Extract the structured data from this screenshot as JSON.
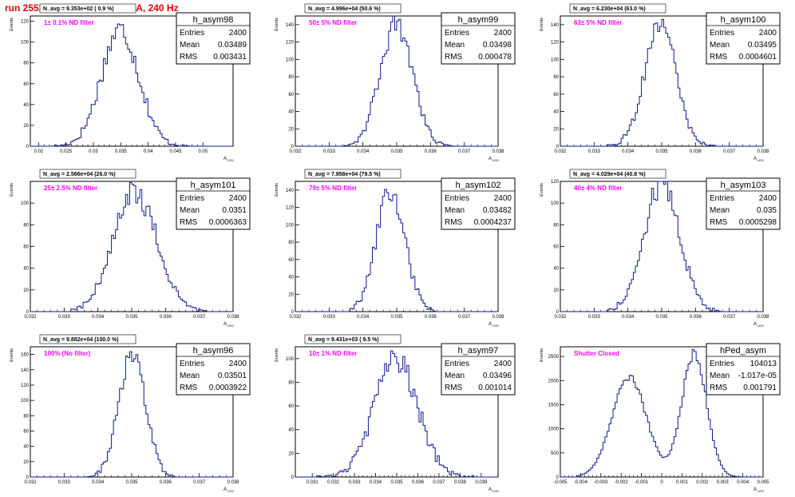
{
  "page_title": "run 2552,   550 V, I_pe ≈ 0.5 nA, 240 Hz",
  "stats_labels": {
    "entries": "Entries",
    "mean": "Mean",
    "rms": "RMS"
  },
  "axis_labels": {
    "y": "Events",
    "x": "A",
    "x_sub": "LED"
  },
  "chart_data": [
    {
      "type": "histogram",
      "hist_name": "h_asym98",
      "navg_label": "N_avg = 9.353e+02 ( 0.9 %)",
      "filter_label": "1± 0.1% ND filter",
      "stats": {
        "entries": "2400",
        "mean": "0.03489",
        "rms": "0.003431"
      },
      "xlim": [
        0.0185,
        0.0555
      ],
      "ylim": [
        0,
        125
      ],
      "x_ticks": [
        "0.02",
        "0.025",
        "0.03",
        "0.035",
        "0.04",
        "0.045",
        "0.05"
      ],
      "x_tick_values": [
        0.02,
        0.025,
        0.03,
        0.035,
        0.04,
        0.045,
        0.05
      ],
      "y_ticks": [
        0,
        20,
        40,
        60,
        80,
        100,
        120
      ],
      "mean": 0.03489,
      "sigma": 0.003431,
      "peak": 112,
      "xmin": 0.0225,
      "xmax": 0.0475
    },
    {
      "type": "histogram",
      "hist_name": "h_asym99",
      "navg_label": "N_avg = 4.996e+04 (50.6 %)",
      "filter_label": "50± 5% ND filter",
      "stats": {
        "entries": "2400",
        "mean": "0.03498",
        "rms": "0.000478"
      },
      "xlim": [
        0.032,
        0.038
      ],
      "ylim": [
        0,
        150
      ],
      "x_ticks": [
        "0.032",
        "0.033",
        "0.034",
        "0.035",
        "0.036",
        "0.037",
        "0.038"
      ],
      "x_tick_values": [
        0.032,
        0.033,
        0.034,
        0.035,
        0.036,
        0.037,
        0.038
      ],
      "y_ticks": [
        0,
        20,
        40,
        60,
        80,
        100,
        120,
        140
      ],
      "mean": 0.03498,
      "sigma": 0.000478,
      "peak": 140,
      "xmin": 0.0334,
      "xmax": 0.0367
    },
    {
      "type": "histogram",
      "hist_name": "h_asym100",
      "navg_label": "N_avg = 6.230e+04 (63.0 %)",
      "filter_label": "63± 5% ND filter",
      "stats": {
        "entries": "2400",
        "mean": "0.03495",
        "rms": "0.0004601"
      },
      "xlim": [
        0.032,
        0.038
      ],
      "ylim": [
        0,
        150
      ],
      "x_ticks": [
        "0.032",
        "0.033",
        "0.034",
        "0.035",
        "0.036",
        "0.037",
        "0.038"
      ],
      "x_tick_values": [
        0.032,
        0.033,
        0.034,
        0.035,
        0.036,
        0.037,
        0.038
      ],
      "y_ticks": [
        0,
        20,
        40,
        60,
        80,
        100,
        120,
        140
      ],
      "mean": 0.03495,
      "sigma": 0.0004601,
      "peak": 142,
      "xmin": 0.0334,
      "xmax": 0.0366
    },
    {
      "type": "histogram",
      "hist_name": "h_asym101",
      "navg_label": "N_avg = 2.566e+04 (26.0 %)",
      "filter_label": "25± 2.5% ND filter",
      "stats": {
        "entries": "2400",
        "mean": "0.0351",
        "rms": "0.0006363"
      },
      "xlim": [
        0.032,
        0.038
      ],
      "ylim": [
        0,
        120
      ],
      "x_ticks": [
        "0.032",
        "0.033",
        "0.034",
        "0.035",
        "0.036",
        "0.037",
        "0.038"
      ],
      "x_tick_values": [
        0.032,
        0.033,
        0.034,
        0.035,
        0.036,
        0.037,
        0.038
      ],
      "y_ticks": [
        0,
        20,
        40,
        60,
        80,
        100
      ],
      "mean": 0.0351,
      "sigma": 0.0006363,
      "peak": 110,
      "xmin": 0.0332,
      "xmax": 0.0372
    },
    {
      "type": "histogram",
      "hist_name": "h_asym102",
      "navg_label": "N_avg = 7.858e+04 (79.5 %)",
      "filter_label": "79± 5% ND filter",
      "stats": {
        "entries": "2400",
        "mean": "0.03482",
        "rms": "0.0004237"
      },
      "xlim": [
        0.032,
        0.038
      ],
      "ylim": [
        0,
        150
      ],
      "x_ticks": [
        "0.032",
        "0.033",
        "0.034",
        "0.035",
        "0.036",
        "0.037",
        "0.038"
      ],
      "x_tick_values": [
        0.032,
        0.033,
        0.034,
        0.035,
        0.036,
        0.037,
        0.038
      ],
      "y_ticks": [
        0,
        20,
        40,
        60,
        80,
        100,
        120,
        140
      ],
      "mean": 0.03482,
      "sigma": 0.0004237,
      "peak": 138,
      "xmin": 0.0336,
      "xmax": 0.0362
    },
    {
      "type": "histogram",
      "hist_name": "h_asym103",
      "navg_label": "N_avg = 4.029e+04 (40.8 %)",
      "filter_label": "40± 4% ND filter",
      "stats": {
        "entries": "2400",
        "mean": "0.035",
        "rms": "0.0005298"
      },
      "xlim": [
        0.032,
        0.038
      ],
      "ylim": [
        0,
        120
      ],
      "x_ticks": [
        "0.032",
        "0.033",
        "0.034",
        "0.035",
        "0.036",
        "0.037",
        "0.038"
      ],
      "x_tick_values": [
        0.032,
        0.033,
        0.034,
        0.035,
        0.036,
        0.037,
        0.038
      ],
      "y_ticks": [
        0,
        20,
        40,
        60,
        80,
        100,
        120
      ],
      "mean": 0.035,
      "sigma": 0.0005298,
      "peak": 118,
      "xmin": 0.0334,
      "xmax": 0.0368
    },
    {
      "type": "histogram",
      "hist_name": "h_asym96",
      "navg_label": "N_avg = 9.882e+04 (100.0 %)",
      "filter_label": "100% (No filter)",
      "stats": {
        "entries": "2400",
        "mean": "0.03501",
        "rms": "0.0003922"
      },
      "xlim": [
        0.032,
        0.038
      ],
      "ylim": [
        0,
        170
      ],
      "x_ticks": [
        "0.032",
        "0.033",
        "0.034",
        "0.035",
        "0.036",
        "0.037",
        "0.038"
      ],
      "x_tick_values": [
        0.032,
        0.033,
        0.034,
        0.035,
        0.036,
        0.037,
        0.038
      ],
      "y_ticks": [
        0,
        20,
        40,
        60,
        80,
        100,
        120,
        140,
        160
      ],
      "mean": 0.03501,
      "sigma": 0.0003922,
      "peak": 160,
      "xmin": 0.0337,
      "xmax": 0.0363
    },
    {
      "type": "histogram",
      "hist_name": "h_asym97",
      "navg_label": "N_avg = 9.431e+03 ( 9.5 %)",
      "filter_label": "10± 1% ND filter",
      "stats": {
        "entries": "2400",
        "mean": "0.03496",
        "rms": "0.001014"
      },
      "xlim": [
        0.0302,
        0.0398
      ],
      "ylim": [
        0,
        110
      ],
      "x_ticks": [
        "0.031",
        "0.032",
        "0.033",
        "0.034",
        "0.035",
        "0.036",
        "0.037",
        "0.038",
        "0.039"
      ],
      "x_tick_values": [
        0.031,
        0.032,
        0.033,
        0.034,
        0.035,
        0.036,
        0.037,
        0.038,
        0.039
      ],
      "y_ticks": [
        0,
        20,
        40,
        60,
        80,
        100
      ],
      "mean": 0.03496,
      "sigma": 0.001014,
      "peak": 100,
      "xmin": 0.0312,
      "xmax": 0.0386
    },
    {
      "type": "histogram",
      "hist_name": "hPed_asym",
      "navg_label": "",
      "filter_label": "Shutter Closed",
      "stats": {
        "entries": "104013",
        "mean": "-1.017e-05",
        "rms": "0.001791"
      },
      "xlim": [
        -0.005,
        0.005
      ],
      "ylim": [
        0,
        2700
      ],
      "x_ticks": [
        "-0.005",
        "-0.004",
        "-0.003",
        "-0.002",
        "-0.001",
        "0",
        "0.001",
        "0.002",
        "0.003",
        "0.004",
        "0.005"
      ],
      "x_tick_values": [
        -0.005,
        -0.004,
        -0.003,
        -0.002,
        -0.001,
        0,
        0.001,
        0.002,
        0.003,
        0.004,
        0.005
      ],
      "y_ticks": [
        0,
        500,
        1000,
        1500,
        2000,
        2500
      ],
      "bimodal": true,
      "modes": [
        {
          "mean": -0.0016,
          "sigma": 0.00085,
          "peak": 2050
        },
        {
          "mean": 0.0016,
          "sigma": 0.00062,
          "peak": 2550
        }
      ],
      "dip_min": 300,
      "xmin": -0.0042,
      "xmax": 0.0045
    }
  ]
}
